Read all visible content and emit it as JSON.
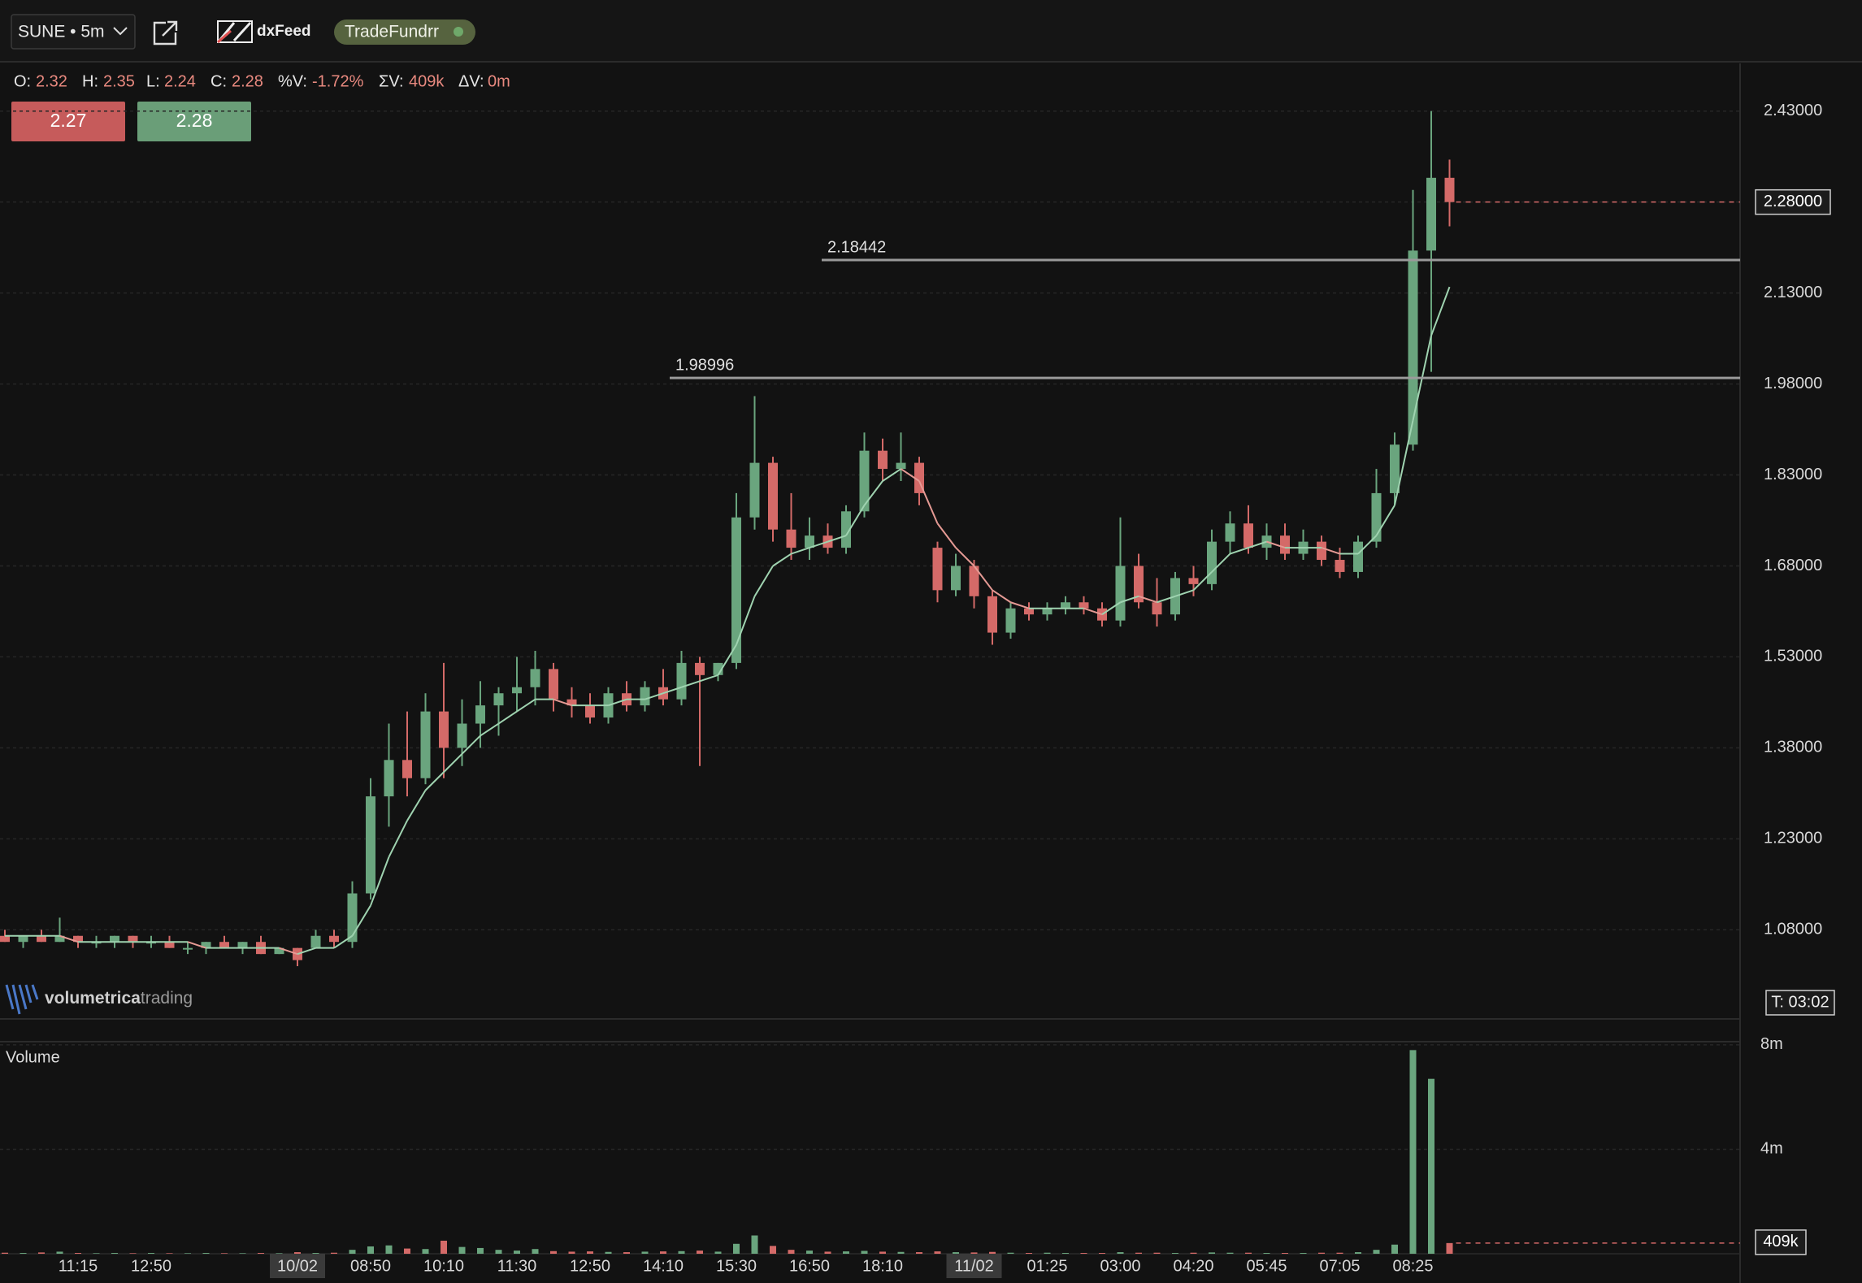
{
  "header": {
    "symbol": "SUNE • 5m",
    "provider": "dxFeed",
    "account": "TradeFundrr"
  },
  "ohlc": [
    {
      "label": "O:",
      "value": 2.32
    },
    {
      "label": "H:",
      "value": 2.35
    },
    {
      "label": "L:",
      "value": 2.24
    },
    {
      "label": "C:",
      "value": 2.28
    },
    {
      "label": "%V:",
      "value": "-1.72%"
    },
    {
      "label": "ΣV:",
      "value": "409k"
    },
    {
      "label": "ΔV:",
      "value": "0m"
    }
  ],
  "quotes": {
    "bid": 2.27,
    "ask": 2.28
  },
  "watermark": {
    "bold": "volumetrica",
    "light": "trading"
  },
  "chart_data": [
    {
      "type": "candlestick",
      "up_color": "#6aa57e",
      "down_color": "#d46a68",
      "grid": true,
      "categories": [
        null,
        null,
        null,
        null,
        "11:15",
        null,
        null,
        null,
        "12:50",
        null,
        null,
        null,
        null,
        null,
        null,
        null,
        "10/02",
        null,
        null,
        null,
        "08:50",
        null,
        null,
        null,
        "10:10",
        null,
        null,
        null,
        "11:30",
        null,
        null,
        null,
        "12:50",
        null,
        null,
        null,
        "14:10",
        null,
        null,
        null,
        "15:30",
        null,
        null,
        null,
        "16:50",
        null,
        null,
        null,
        "18:10",
        null,
        null,
        null,
        null,
        "11/02",
        null,
        null,
        null,
        "01:25",
        null,
        null,
        null,
        "03:00",
        null,
        null,
        null,
        "04:20",
        null,
        null,
        null,
        "05:45",
        null,
        null,
        null,
        "07:05",
        null,
        null,
        null,
        "08:25",
        null,
        null
      ],
      "open": [
        1.07,
        1.06,
        1.07,
        1.06,
        1.07,
        1.06,
        1.06,
        1.07,
        1.06,
        1.06,
        1.05,
        1.05,
        1.06,
        1.05,
        1.06,
        1.04,
        1.05,
        1.05,
        1.07,
        1.06,
        1.14,
        1.3,
        1.36,
        1.33,
        1.44,
        1.38,
        1.42,
        1.45,
        1.47,
        1.48,
        1.51,
        1.46,
        1.45,
        1.43,
        1.47,
        1.45,
        1.48,
        1.46,
        1.52,
        1.5,
        1.52,
        1.76,
        1.85,
        1.74,
        1.71,
        1.73,
        1.71,
        1.77,
        1.87,
        1.84,
        1.85,
        1.71,
        1.64,
        1.68,
        1.63,
        1.57,
        1.61,
        1.6,
        1.61,
        1.62,
        1.61,
        1.59,
        1.68,
        1.62,
        1.6,
        1.66,
        1.65,
        1.72,
        1.75,
        1.71,
        1.73,
        1.7,
        1.72,
        1.69,
        1.67,
        1.72,
        1.8,
        1.88,
        2.2,
        2.32
      ],
      "high": [
        1.08,
        1.07,
        1.08,
        1.1,
        1.07,
        1.07,
        1.07,
        1.07,
        1.07,
        1.07,
        1.06,
        1.06,
        1.07,
        1.06,
        1.07,
        1.05,
        1.05,
        1.08,
        1.08,
        1.16,
        1.33,
        1.42,
        1.44,
        1.47,
        1.52,
        1.46,
        1.49,
        1.48,
        1.53,
        1.54,
        1.52,
        1.48,
        1.47,
        1.48,
        1.49,
        1.49,
        1.51,
        1.54,
        1.53,
        1.52,
        1.8,
        1.96,
        1.86,
        1.8,
        1.76,
        1.75,
        1.78,
        1.9,
        1.89,
        1.9,
        1.86,
        1.72,
        1.7,
        1.69,
        1.64,
        1.62,
        1.62,
        1.62,
        1.63,
        1.63,
        1.62,
        1.76,
        1.7,
        1.66,
        1.67,
        1.68,
        1.74,
        1.77,
        1.78,
        1.75,
        1.75,
        1.74,
        1.73,
        1.71,
        1.73,
        1.84,
        1.9,
        2.3,
        2.43,
        2.35
      ],
      "low": [
        1.06,
        1.05,
        1.06,
        1.06,
        1.05,
        1.05,
        1.05,
        1.05,
        1.05,
        1.05,
        1.04,
        1.04,
        1.05,
        1.04,
        1.04,
        1.04,
        1.02,
        1.05,
        1.05,
        1.05,
        1.13,
        1.25,
        1.3,
        1.32,
        1.33,
        1.35,
        1.38,
        1.4,
        1.44,
        1.45,
        1.44,
        1.43,
        1.42,
        1.42,
        1.44,
        1.44,
        1.45,
        1.45,
        1.35,
        1.49,
        1.51,
        1.74,
        1.72,
        1.69,
        1.69,
        1.7,
        1.7,
        1.76,
        1.82,
        1.82,
        1.78,
        1.62,
        1.63,
        1.61,
        1.55,
        1.56,
        1.59,
        1.59,
        1.6,
        1.6,
        1.58,
        1.58,
        1.61,
        1.58,
        1.59,
        1.63,
        1.64,
        1.7,
        1.7,
        1.69,
        1.69,
        1.69,
        1.68,
        1.66,
        1.66,
        1.71,
        1.78,
        1.87,
        2.0,
        2.24
      ],
      "close": [
        1.06,
        1.07,
        1.06,
        1.07,
        1.06,
        1.06,
        1.07,
        1.06,
        1.06,
        1.05,
        1.05,
        1.06,
        1.05,
        1.06,
        1.04,
        1.05,
        1.03,
        1.07,
        1.06,
        1.14,
        1.3,
        1.36,
        1.33,
        1.44,
        1.38,
        1.42,
        1.45,
        1.47,
        1.48,
        1.51,
        1.46,
        1.45,
        1.43,
        1.47,
        1.45,
        1.48,
        1.46,
        1.52,
        1.5,
        1.52,
        1.76,
        1.85,
        1.74,
        1.71,
        1.73,
        1.71,
        1.77,
        1.87,
        1.84,
        1.85,
        1.8,
        1.64,
        1.68,
        1.63,
        1.57,
        1.61,
        1.6,
        1.61,
        1.62,
        1.61,
        1.59,
        1.68,
        1.62,
        1.6,
        1.66,
        1.65,
        1.72,
        1.75,
        1.71,
        1.73,
        1.7,
        1.72,
        1.69,
        1.67,
        1.72,
        1.8,
        1.88,
        2.2,
        2.32,
        2.28
      ],
      "overlay": [
        1.07,
        1.07,
        1.07,
        1.07,
        1.06,
        1.06,
        1.06,
        1.06,
        1.06,
        1.06,
        1.06,
        1.05,
        1.05,
        1.05,
        1.05,
        1.05,
        1.04,
        1.05,
        1.05,
        1.07,
        1.12,
        1.2,
        1.26,
        1.31,
        1.34,
        1.37,
        1.4,
        1.42,
        1.44,
        1.46,
        1.46,
        1.45,
        1.45,
        1.45,
        1.46,
        1.46,
        1.47,
        1.48,
        1.49,
        1.5,
        1.55,
        1.63,
        1.68,
        1.7,
        1.71,
        1.72,
        1.73,
        1.78,
        1.82,
        1.84,
        1.82,
        1.75,
        1.71,
        1.68,
        1.64,
        1.62,
        1.61,
        1.61,
        1.61,
        1.61,
        1.6,
        1.62,
        1.63,
        1.62,
        1.63,
        1.64,
        1.67,
        1.7,
        1.71,
        1.72,
        1.71,
        1.71,
        1.71,
        1.7,
        1.7,
        1.73,
        1.78,
        1.92,
        2.06,
        2.14
      ],
      "ylim": [
        0.933,
        2.506
      ],
      "yticks": [
        {
          "value": 1.08,
          "label": "1.08000"
        },
        {
          "value": 1.23,
          "label": "1.23000"
        },
        {
          "value": 1.38,
          "label": "1.38000"
        },
        {
          "value": 1.53,
          "label": "1.53000"
        },
        {
          "value": 1.68,
          "label": "1.68000"
        },
        {
          "value": 1.83,
          "label": "1.83000"
        },
        {
          "value": 1.98,
          "label": "1.98000"
        },
        {
          "value": 2.13,
          "label": "2.13000"
        },
        {
          "value": 2.28,
          "label": "2.28000"
        },
        {
          "value": 2.43,
          "label": "2.43000"
        }
      ],
      "levels": [
        2.18442,
        1.98996
      ],
      "last_price": {
        "value": 2.28,
        "label": "2.28000"
      },
      "timer": "T: 03:02"
    },
    {
      "type": "bar",
      "title": "Volume",
      "grid": true,
      "values": [
        40000,
        30000,
        50000,
        80000,
        30000,
        20000,
        30000,
        20000,
        30000,
        20000,
        20000,
        30000,
        20000,
        20000,
        30000,
        20000,
        60000,
        30000,
        40000,
        150000,
        280000,
        320000,
        200000,
        180000,
        500000,
        260000,
        220000,
        150000,
        120000,
        180000,
        100000,
        80000,
        90000,
        70000,
        60000,
        80000,
        90000,
        100000,
        120000,
        80000,
        380000,
        700000,
        300000,
        150000,
        120000,
        80000,
        90000,
        110000,
        80000,
        70000,
        60000,
        90000,
        60000,
        50000,
        70000,
        40000,
        30000,
        40000,
        30000,
        30000,
        30000,
        60000,
        40000,
        40000,
        30000,
        40000,
        50000,
        40000,
        40000,
        30000,
        30000,
        30000,
        40000,
        40000,
        60000,
        150000,
        350000,
        7800000,
        6700000,
        409000
      ],
      "ylim": [
        0,
        8060000
      ],
      "yticks": [
        {
          "value": 4000000,
          "label": "4m"
        },
        {
          "value": 8000000,
          "label": "8m"
        }
      ],
      "last_value": {
        "value": 409000,
        "label": "409k"
      }
    }
  ]
}
